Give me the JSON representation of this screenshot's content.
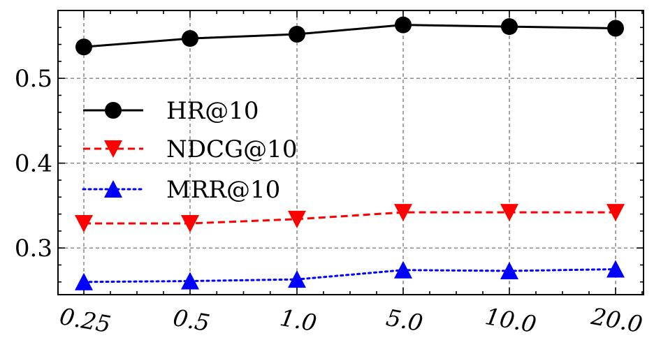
{
  "chart_data": {
    "type": "line",
    "title": "",
    "xlabel": "",
    "ylabel": "",
    "categories": [
      "0.25",
      "0.5",
      "1.0",
      "5.0",
      "10.0",
      "20.0"
    ],
    "ylim": [
      0.245,
      0.58
    ],
    "y_ticks": [
      0.3,
      0.4,
      0.5
    ],
    "y_tick_labels": [
      "0.3",
      "0.4",
      "0.5"
    ],
    "grid": true,
    "legend_position": "center-left",
    "series": [
      {
        "name": "HR@10",
        "values": [
          0.537,
          0.547,
          0.552,
          0.563,
          0.561,
          0.559
        ],
        "color": "#000000",
        "marker": "circle",
        "line_style": "solid"
      },
      {
        "name": "NDCG@10",
        "values": [
          0.329,
          0.329,
          0.334,
          0.342,
          0.342,
          0.342
        ],
        "color": "#ff0000",
        "marker": "triangle-down",
        "line_style": "dashed"
      },
      {
        "name": "MRR@10",
        "values": [
          0.26,
          0.261,
          0.263,
          0.274,
          0.273,
          0.275
        ],
        "color": "#0000ff",
        "marker": "triangle-up",
        "line_style": "dotted"
      }
    ]
  }
}
